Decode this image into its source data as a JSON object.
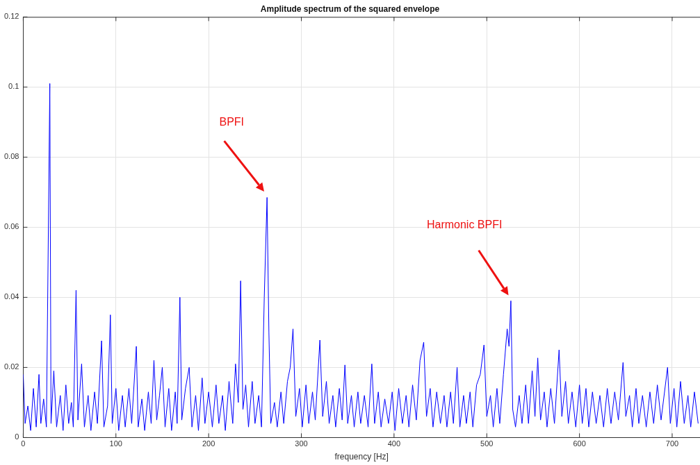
{
  "chart_data": {
    "type": "line",
    "title": "Amplitude spectrum of the squared envelope",
    "xlabel": "frequency [Hz]",
    "x": [
      0,
      2,
      5,
      8,
      11,
      14,
      17,
      19,
      22,
      25,
      28.7,
      30,
      33,
      36,
      40,
      43,
      46,
      49,
      52,
      54,
      57,
      59,
      63,
      66,
      70,
      73,
      77,
      80,
      84.5,
      87,
      91,
      94,
      96,
      100,
      103,
      107,
      110,
      114,
      117,
      122,
      124,
      128,
      131,
      135,
      138,
      141,
      144,
      147,
      150,
      153,
      157,
      160,
      164,
      166,
      169,
      171,
      175,
      179,
      182,
      186,
      189,
      193,
      196,
      200,
      204,
      208,
      211,
      215,
      218,
      222,
      226,
      229,
      232,
      234.5,
      237,
      240,
      243,
      247,
      250,
      254,
      257,
      260,
      263,
      265,
      267,
      271,
      274,
      278,
      281,
      285,
      288,
      291,
      294,
      298,
      301,
      305,
      308,
      312,
      315,
      320,
      323,
      327,
      330,
      334,
      337,
      341,
      344,
      347,
      350,
      354,
      357,
      361,
      364,
      368,
      372,
      376,
      379,
      383,
      386,
      390,
      394,
      398,
      401,
      405,
      409,
      413,
      416,
      420,
      424,
      428,
      432,
      435,
      439,
      442,
      446,
      450,
      454,
      457,
      461,
      464,
      468,
      471,
      475,
      478,
      482,
      485,
      489,
      493,
      497,
      500,
      504,
      507,
      511,
      514,
      518,
      522,
      524,
      526,
      528,
      531,
      535,
      538,
      542,
      545,
      549,
      552,
      555,
      558,
      562,
      565,
      569,
      573,
      578,
      581,
      585,
      588,
      592,
      596,
      600,
      603,
      607,
      610,
      614,
      618,
      622,
      626,
      630,
      634,
      638,
      642,
      647,
      650,
      654,
      657,
      661,
      664,
      668,
      672,
      676,
      680,
      684,
      688,
      695,
      698,
      702,
      705,
      709,
      713,
      717,
      720,
      724,
      728
    ],
    "series": [
      {
        "color": "#0000ff",
        "values": [
          0.018,
          0.004,
          0.009,
          0.002,
          0.014,
          0.003,
          0.018,
          0.004,
          0.011,
          0.003,
          0.101,
          0.004,
          0.019,
          0.003,
          0.012,
          0.002,
          0.015,
          0.004,
          0.01,
          0.003,
          0.042,
          0.005,
          0.021,
          0.003,
          0.012,
          0.002,
          0.013,
          0.004,
          0.0276,
          0.003,
          0.009,
          0.035,
          0.004,
          0.014,
          0.002,
          0.012,
          0.003,
          0.014,
          0.004,
          0.026,
          0.003,
          0.011,
          0.002,
          0.013,
          0.004,
          0.022,
          0.005,
          0.012,
          0.02,
          0.003,
          0.014,
          0.002,
          0.013,
          0.004,
          0.04,
          0.005,
          0.014,
          0.02,
          0.003,
          0.012,
          0.002,
          0.017,
          0.004,
          0.013,
          0.003,
          0.015,
          0.004,
          0.012,
          0.002,
          0.016,
          0.004,
          0.021,
          0.01,
          0.0447,
          0.008,
          0.015,
          0.003,
          0.016,
          0.004,
          0.012,
          0.003,
          0.04,
          0.0685,
          0.03,
          0.004,
          0.01,
          0.003,
          0.013,
          0.004,
          0.016,
          0.02,
          0.031,
          0.006,
          0.014,
          0.003,
          0.015,
          0.004,
          0.013,
          0.005,
          0.0278,
          0.006,
          0.016,
          0.004,
          0.012,
          0.003,
          0.014,
          0.005,
          0.0207,
          0.004,
          0.012,
          0.003,
          0.013,
          0.004,
          0.012,
          0.003,
          0.021,
          0.004,
          0.013,
          0.003,
          0.011,
          0.004,
          0.013,
          0.002,
          0.014,
          0.004,
          0.012,
          0.003,
          0.015,
          0.005,
          0.022,
          0.0272,
          0.006,
          0.014,
          0.003,
          0.013,
          0.004,
          0.012,
          0.003,
          0.013,
          0.004,
          0.02,
          0.003,
          0.012,
          0.004,
          0.013,
          0.003,
          0.015,
          0.018,
          0.0264,
          0.006,
          0.012,
          0.003,
          0.014,
          0.004,
          0.018,
          0.031,
          0.026,
          0.039,
          0.008,
          0.003,
          0.012,
          0.004,
          0.015,
          0.004,
          0.019,
          0.006,
          0.0227,
          0.005,
          0.013,
          0.003,
          0.014,
          0.004,
          0.025,
          0.006,
          0.016,
          0.004,
          0.013,
          0.003,
          0.015,
          0.004,
          0.014,
          0.003,
          0.013,
          0.004,
          0.012,
          0.003,
          0.014,
          0.004,
          0.013,
          0.005,
          0.0214,
          0.006,
          0.012,
          0.003,
          0.014,
          0.004,
          0.012,
          0.003,
          0.013,
          0.004,
          0.015,
          0.005,
          0.02,
          0.004,
          0.014,
          0.003,
          0.016,
          0.004,
          0.012,
          0.003,
          0.013,
          0.004
        ]
      }
    ],
    "xlim": [
      0,
      730
    ],
    "xticks": [
      0,
      100,
      200,
      300,
      400,
      500,
      600,
      700
    ],
    "ylim": [
      0,
      0.12
    ],
    "yticks": [
      0,
      0.02,
      0.04,
      0.06,
      0.08,
      0.1,
      0.12
    ],
    "grid": true,
    "legend": false,
    "marker": "none",
    "line_style": "solid",
    "annotations": [
      "BPFI",
      "Harmonic BPFI"
    ]
  }
}
